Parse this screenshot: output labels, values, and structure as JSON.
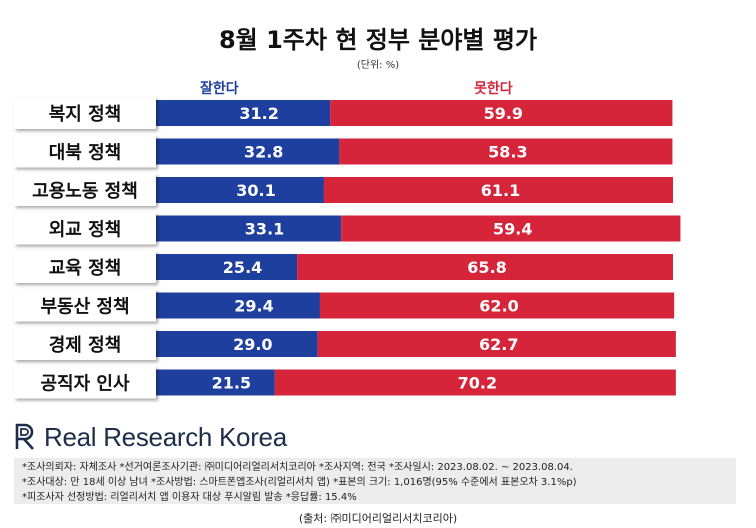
{
  "header": {
    "title": "8월 1주차 현 정부 분야별 평가",
    "unit": "(단위: %)"
  },
  "legend": {
    "good": "잘한다",
    "bad": "못한다"
  },
  "colors": {
    "good": "#1e3f9e",
    "bad": "#d6253a",
    "label_bg": "#ffffff"
  },
  "chart_data": {
    "type": "bar",
    "orientation": "horizontal",
    "stacked": true,
    "categories": [
      "복지 정책",
      "대북 정책",
      "고용노동 정책",
      "외교 정책",
      "교육 정책",
      "부동산 정책",
      "경제 정책",
      "공직자 인사"
    ],
    "series": [
      {
        "name": "잘한다",
        "values": [
          31.2,
          32.8,
          30.1,
          33.1,
          25.4,
          29.4,
          29.0,
          21.5
        ]
      },
      {
        "name": "못한다",
        "values": [
          59.9,
          58.3,
          61.1,
          59.4,
          65.8,
          62.0,
          62.7,
          70.2
        ]
      }
    ],
    "title": "8월 1주차 현 정부 분야별 평가",
    "xlabel": "",
    "ylabel": "",
    "xlim": [
      0,
      100
    ],
    "grid": false,
    "legend_position": "top"
  },
  "brand": {
    "name": "Real Research Korea",
    "logo_icon": "rr-logo-icon"
  },
  "notes": {
    "line1": "*조사의뢰자: 자체조사 *선거여론조사기관: ㈜미디어리얼리서치코리아 *조사지역: 전국 *조사일시: 2023.08.02. ~ 2023.08.04.",
    "line2": "*조사대상: 만 18세 이상 남녀 *조사방법: 스마트폰앱조사(리얼리서치 앱) *표본의 크기: 1,016명(95% 수준에서 표본오차 3.1%p)",
    "line3": "*피조사자 선정방법: 리얼리서치 앱 이용자 대상 푸시알림 발송 *응답률: 15.4%"
  },
  "source": "(출처: ㈜미디어리얼리서치코리아)"
}
